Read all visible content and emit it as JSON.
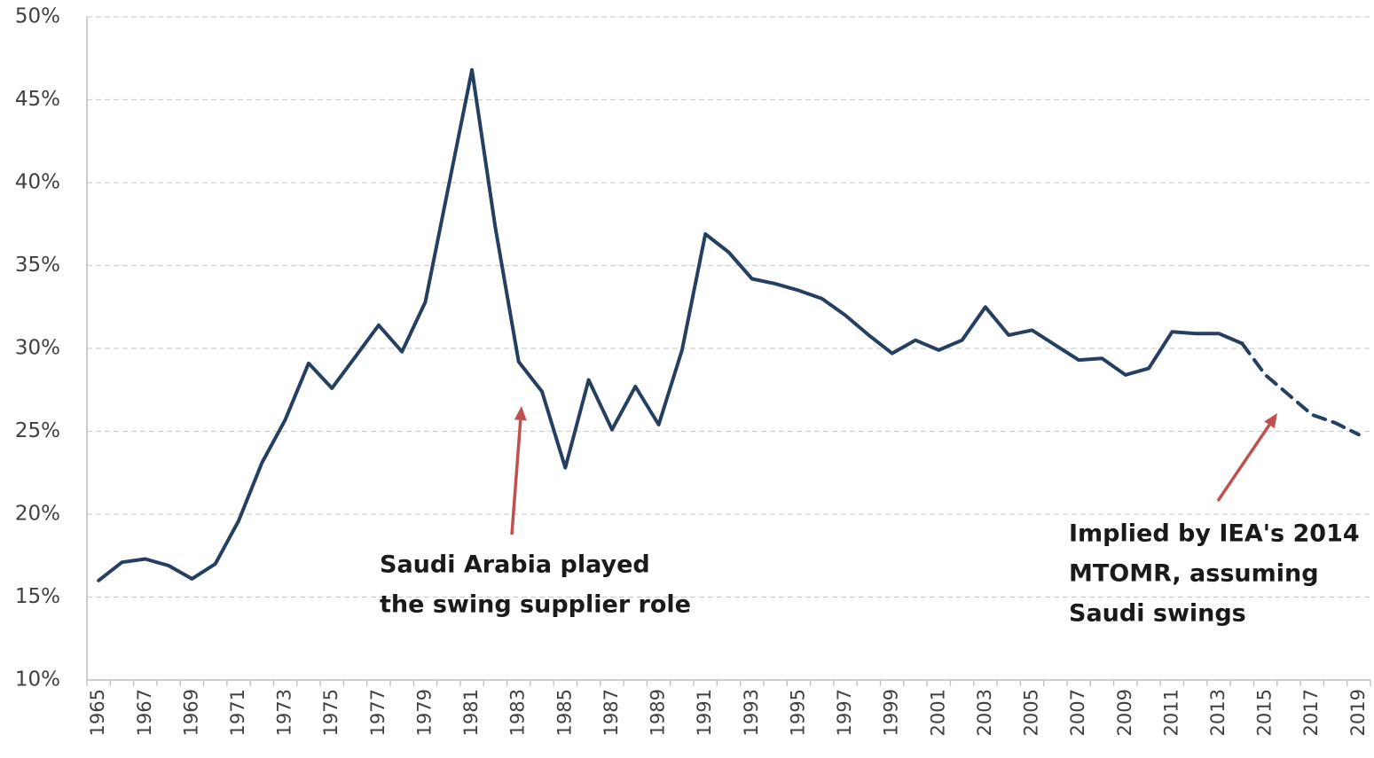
{
  "chart_data": {
    "type": "line",
    "categories": [
      "1965",
      null,
      "1967",
      null,
      "1969",
      null,
      "1971",
      null,
      "1973",
      null,
      "1975",
      null,
      "1977",
      null,
      "1979",
      null,
      "1981",
      null,
      "1983",
      null,
      "1985",
      null,
      "1987",
      null,
      "1989",
      null,
      "1991",
      null,
      "1993",
      null,
      "1995",
      null,
      "1997",
      null,
      "1999",
      null,
      "2001",
      null,
      "2003",
      null,
      "2005",
      null,
      "2007",
      null,
      "2009",
      null,
      "2011",
      null,
      "2013",
      null,
      "2015",
      null,
      "2017",
      null,
      "2019"
    ],
    "series": [
      {
        "color": "#243f60",
        "dashed": false,
        "values": [
          16.0,
          17.1,
          17.3,
          16.9,
          16.1,
          17.0,
          19.6,
          23.1,
          25.7,
          29.1,
          27.6,
          29.5,
          31.4,
          29.8,
          32.8,
          39.8,
          46.8,
          37.3,
          29.2,
          27.4,
          22.8,
          28.1,
          25.1,
          27.7,
          25.4,
          29.9,
          36.9,
          35.8,
          34.2,
          33.9,
          33.5,
          33.0,
          32.0,
          30.8,
          29.7,
          30.5,
          29.9,
          30.5,
          32.5,
          30.8,
          31.1,
          30.2,
          29.3,
          29.4,
          28.4,
          28.8,
          31.0,
          30.9,
          30.9,
          30.3,
          null,
          null,
          null,
          null,
          null
        ]
      },
      {
        "color": "#243f60",
        "dashed": true,
        "values": [
          null,
          null,
          null,
          null,
          null,
          null,
          null,
          null,
          null,
          null,
          null,
          null,
          null,
          null,
          null,
          null,
          null,
          null,
          null,
          null,
          null,
          null,
          null,
          null,
          null,
          null,
          null,
          null,
          null,
          null,
          null,
          null,
          null,
          null,
          null,
          null,
          null,
          null,
          null,
          null,
          null,
          null,
          null,
          null,
          null,
          null,
          null,
          null,
          null,
          30.3,
          28.4,
          27.2,
          26.0,
          25.5,
          24.8
        ]
      }
    ],
    "ylim": [
      10,
      50
    ],
    "yticks": [
      {
        "value": 10,
        "label": "10%"
      },
      {
        "value": 15,
        "label": "15%"
      },
      {
        "value": 20,
        "label": "20%"
      },
      {
        "value": 25,
        "label": "25%"
      },
      {
        "value": 30,
        "label": "30%"
      },
      {
        "value": 35,
        "label": "35%"
      },
      {
        "value": 40,
        "label": "40%"
      },
      {
        "value": 45,
        "label": "45%"
      },
      {
        "value": 50,
        "label": "50%"
      }
    ],
    "grid": true,
    "annotations": [
      {
        "lines": [
          "Saudi Arabia played",
          "the swing supplier role"
        ],
        "color": "#c0504d"
      },
      {
        "lines": [
          "Implied by IEA's 2014",
          "MTOMR, assuming",
          "Saudi swings"
        ],
        "color": "#c0504d"
      }
    ]
  }
}
